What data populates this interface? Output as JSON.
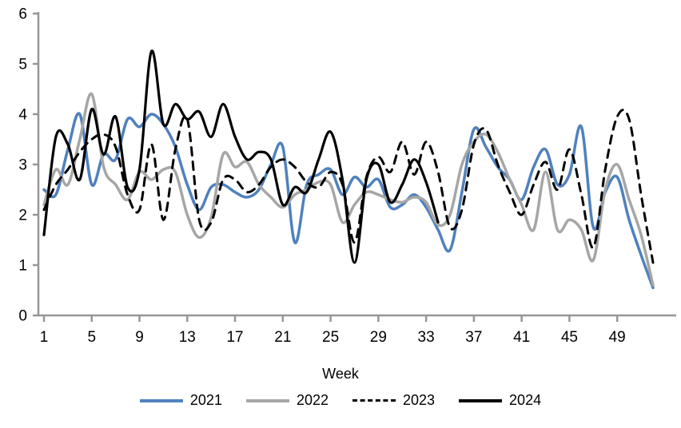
{
  "chart_data": {
    "type": "line",
    "title": "",
    "xlabel": "Week",
    "ylabel": "",
    "xlim": [
      1,
      52
    ],
    "ylim": [
      0,
      6
    ],
    "grid": false,
    "legend_position": "bottom",
    "x_ticks": [
      1,
      5,
      9,
      13,
      17,
      21,
      25,
      29,
      33,
      37,
      41,
      45,
      49
    ],
    "y_ticks": [
      0,
      1,
      2,
      3,
      4,
      5,
      6
    ],
    "axis_color": "#969696",
    "x": [
      1,
      2,
      3,
      4,
      5,
      6,
      7,
      8,
      9,
      10,
      11,
      12,
      13,
      14,
      15,
      16,
      17,
      18,
      19,
      20,
      21,
      22,
      23,
      24,
      25,
      26,
      27,
      28,
      29,
      30,
      31,
      32,
      33,
      34,
      35,
      36,
      37,
      38,
      39,
      40,
      41,
      42,
      43,
      44,
      45,
      46,
      47,
      48,
      49,
      50,
      51,
      52
    ],
    "series": [
      {
        "name": "2021",
        "color": "#4F81BD",
        "dash": "solid",
        "width": 3.5,
        "values": [
          2.5,
          2.4,
          3.3,
          4.0,
          2.6,
          3.2,
          3.1,
          3.9,
          3.75,
          4.0,
          3.8,
          3.35,
          2.6,
          2.1,
          2.55,
          2.6,
          2.45,
          2.35,
          2.5,
          3.0,
          3.35,
          1.45,
          2.6,
          2.8,
          2.9,
          2.4,
          2.75,
          2.55,
          2.7,
          2.15,
          2.2,
          2.4,
          2.15,
          1.7,
          1.3,
          2.45,
          3.7,
          3.35,
          2.95,
          2.7,
          2.3,
          2.95,
          3.3,
          2.6,
          2.8,
          3.75,
          1.75,
          2.45,
          2.75,
          1.9,
          1.2,
          0.55
        ]
      },
      {
        "name": "2022",
        "color": "#A6A6A6",
        "dash": "solid",
        "width": 3.5,
        "values": [
          2.2,
          2.9,
          2.6,
          3.5,
          4.4,
          2.95,
          2.6,
          2.3,
          2.85,
          2.7,
          2.9,
          2.85,
          2.0,
          1.55,
          1.95,
          3.2,
          2.95,
          3.05,
          2.6,
          2.35,
          2.15,
          2.4,
          2.5,
          2.65,
          2.6,
          1.85,
          2.2,
          2.45,
          2.4,
          2.3,
          2.25,
          2.35,
          2.25,
          1.8,
          2.0,
          3.0,
          3.45,
          3.6,
          3.25,
          2.7,
          2.2,
          1.7,
          2.85,
          1.7,
          1.9,
          1.7,
          1.1,
          2.5,
          3.0,
          2.3,
          1.6,
          0.6
        ]
      },
      {
        "name": "2023",
        "color": "#000000",
        "dash": "dashed",
        "width": 3,
        "values": [
          2.1,
          2.6,
          2.9,
          3.25,
          3.5,
          3.6,
          3.35,
          2.4,
          2.1,
          3.4,
          1.9,
          3.3,
          3.9,
          1.9,
          1.85,
          2.7,
          2.7,
          2.45,
          2.6,
          2.95,
          3.1,
          2.95,
          2.65,
          2.55,
          2.85,
          2.6,
          1.45,
          2.75,
          3.15,
          2.85,
          3.45,
          2.8,
          3.45,
          2.85,
          1.75,
          2.1,
          3.4,
          3.7,
          3.0,
          2.45,
          2.0,
          2.6,
          3.05,
          2.5,
          3.3,
          2.4,
          1.35,
          2.9,
          3.95,
          3.9,
          2.4,
          1.05
        ]
      },
      {
        "name": "2024",
        "color": "#000000",
        "dash": "solid",
        "width": 3.2,
        "values": [
          1.6,
          3.55,
          3.4,
          2.7,
          4.1,
          3.2,
          3.95,
          2.55,
          2.9,
          5.25,
          3.8,
          4.2,
          3.9,
          4.05,
          3.55,
          4.2,
          3.55,
          3.1,
          3.25,
          3.1,
          2.2,
          2.55,
          2.45,
          3.1,
          3.65,
          2.7,
          1.05,
          2.7,
          3.0,
          2.25,
          2.6,
          3.1,
          2.65,
          1.85,
          null,
          null,
          null,
          null,
          null,
          null,
          null,
          null,
          null,
          null,
          null,
          null,
          null,
          null,
          null,
          null,
          null,
          null
        ]
      }
    ]
  }
}
